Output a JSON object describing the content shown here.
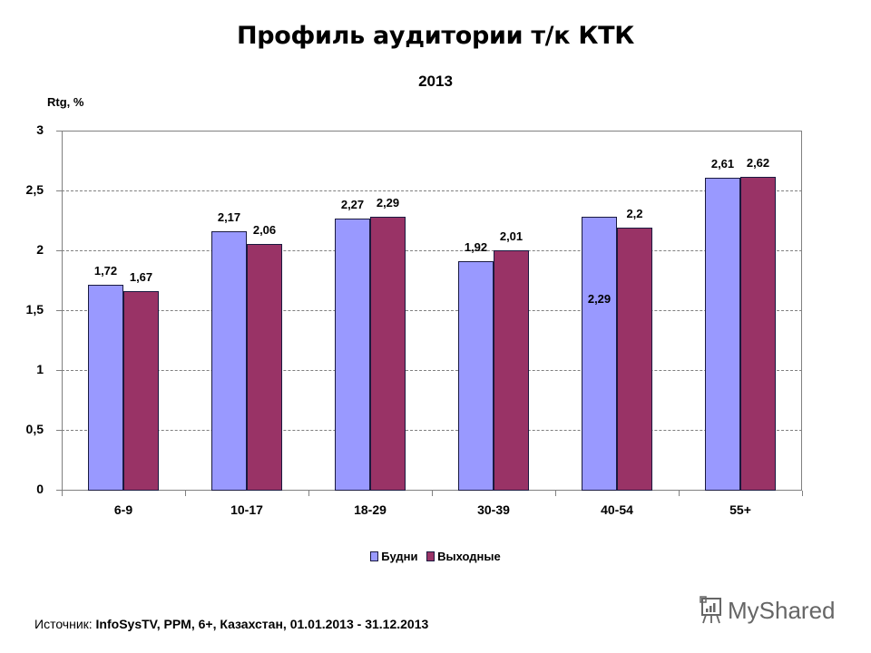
{
  "header": {
    "title": "Профиль аудитории т/к КТК",
    "subtitle": "2013"
  },
  "chart_data": {
    "type": "bar",
    "title": "2013",
    "xlabel": "",
    "ylabel": "Rtg, %",
    "ylim": [
      0,
      3
    ],
    "yticks": [
      "0",
      "0,5",
      "1",
      "1,5",
      "2",
      "2,5",
      "3"
    ],
    "grid": true,
    "legend_position": "bottom",
    "categories": [
      "6-9",
      "10-17",
      "18-29",
      "30-39",
      "40-54",
      "55+"
    ],
    "series": [
      {
        "name": "Будни",
        "color": "#9999ff",
        "values": [
          1.72,
          2.17,
          2.27,
          1.92,
          2.29,
          2.61
        ],
        "labels": [
          "1,72",
          "2,17",
          "2,27",
          "1,92",
          "2,29",
          "2,61"
        ]
      },
      {
        "name": "Выходные",
        "color": "#993366",
        "values": [
          1.67,
          2.06,
          2.29,
          2.01,
          2.2,
          2.62
        ],
        "labels": [
          "1,67",
          "2,06",
          "2,29",
          "2,01",
          "2,2",
          "2,62"
        ]
      }
    ]
  },
  "footer": {
    "source_label": "Источник:",
    "source_value": "InfoSysTV, PPM, 6+, Казахстан, 01.01.2013 - 31.12.2013",
    "brand": "MyShared",
    "brand_icon": "presentation-board-icon"
  }
}
